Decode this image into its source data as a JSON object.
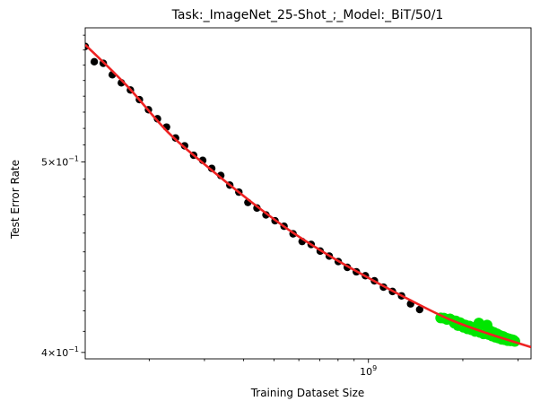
{
  "chart_data": {
    "type": "scatter",
    "title": "Task:_ImageNet_25-Shot_;_Model:_BiT/50/1",
    "xlabel": "Training Dataset Size",
    "ylabel": "Test Error Rate",
    "x_scale": "log",
    "y_scale": "log",
    "xlim": [
      125000000,
      3300000000
    ],
    "ylim": [
      0.397,
      0.585
    ],
    "x_tick_labels": [
      {
        "value": 1000000000,
        "base": "10",
        "exp": "9"
      }
    ],
    "y_tick_labels": [
      {
        "value": 0.5,
        "mant": "5",
        "base": "10",
        "exp": "−1"
      },
      {
        "value": 0.4,
        "mant": "4",
        "base": "10",
        "exp": "−1"
      }
    ],
    "grid": false,
    "legend": "none",
    "colors": {
      "train": "#000000",
      "holdout": "#00e600",
      "fit": "#ee2222"
    },
    "series": [
      {
        "role": "train",
        "points": [
          [
            125000000,
            0.5724
          ],
          [
            133600000,
            0.5622
          ],
          [
            142700000,
            0.5612
          ],
          [
            152500000,
            0.5537
          ],
          [
            163000000,
            0.5485
          ],
          [
            174200000,
            0.5439
          ],
          [
            186100000,
            0.5378
          ],
          [
            198900000,
            0.5315
          ],
          [
            212500000,
            0.5259
          ],
          [
            227100000,
            0.5208
          ],
          [
            242700000,
            0.5142
          ],
          [
            259300000,
            0.5095
          ],
          [
            277100000,
            0.5039
          ],
          [
            296200000,
            0.5009
          ],
          [
            316500000,
            0.4962
          ],
          [
            338200000,
            0.4921
          ],
          [
            361400000,
            0.4866
          ],
          [
            386200000,
            0.4826
          ],
          [
            412700000,
            0.4768
          ],
          [
            441100000,
            0.4737
          ],
          [
            471300000,
            0.4699
          ],
          [
            503700000,
            0.4667
          ],
          [
            538200000,
            0.4637
          ],
          [
            575100000,
            0.4596
          ],
          [
            614600000,
            0.4555
          ],
          [
            656800000,
            0.4539
          ],
          [
            701800000,
            0.4504
          ],
          [
            750000000,
            0.4478
          ],
          [
            801400000,
            0.4449
          ],
          [
            856400000,
            0.4419
          ],
          [
            915200000,
            0.4396
          ],
          [
            978000000,
            0.4376
          ],
          [
            1045000000,
            0.435
          ],
          [
            1116700000,
            0.4318
          ],
          [
            1193400000,
            0.4296
          ],
          [
            1275300000,
            0.4274
          ],
          [
            1362800000,
            0.4234
          ],
          [
            1456400000,
            0.4206
          ]
        ]
      },
      {
        "role": "holdout",
        "points": [
          [
            1700000000,
            0.4165
          ],
          [
            1740000000,
            0.4164
          ],
          [
            1780000000,
            0.4158
          ],
          [
            1820000000,
            0.416
          ],
          [
            1860000000,
            0.4152
          ],
          [
            1880000000,
            0.414
          ],
          [
            1900000000,
            0.415
          ],
          [
            1930000000,
            0.4128
          ],
          [
            1960000000,
            0.4142
          ],
          [
            1990000000,
            0.4135
          ],
          [
            2010000000,
            0.412
          ],
          [
            2040000000,
            0.413
          ],
          [
            2070000000,
            0.4112
          ],
          [
            2100000000,
            0.4125
          ],
          [
            2130000000,
            0.4108
          ],
          [
            2160000000,
            0.4118
          ],
          [
            2190000000,
            0.41
          ],
          [
            2220000000,
            0.4115
          ],
          [
            2250000000,
            0.414
          ],
          [
            2270000000,
            0.4095
          ],
          [
            2300000000,
            0.4122
          ],
          [
            2330000000,
            0.4088
          ],
          [
            2360000000,
            0.411
          ],
          [
            2390000000,
            0.413
          ],
          [
            2420000000,
            0.4085
          ],
          [
            2450000000,
            0.4102
          ],
          [
            2480000000,
            0.4078
          ],
          [
            2510000000,
            0.4095
          ],
          [
            2540000000,
            0.4072
          ],
          [
            2570000000,
            0.4088
          ],
          [
            2600000000,
            0.4068
          ],
          [
            2630000000,
            0.408
          ],
          [
            2660000000,
            0.4062
          ],
          [
            2690000000,
            0.4075
          ],
          [
            2720000000,
            0.406
          ],
          [
            2750000000,
            0.4068
          ],
          [
            2780000000,
            0.4056
          ],
          [
            2810000000,
            0.4064
          ],
          [
            2840000000,
            0.4055
          ],
          [
            2870000000,
            0.406
          ],
          [
            2900000000,
            0.4058
          ],
          [
            2930000000,
            0.4052
          ]
        ]
      },
      {
        "role": "fit",
        "points": [
          [
            125000000,
            0.5735
          ],
          [
            170000000,
            0.5465
          ],
          [
            230000000,
            0.5175
          ],
          [
            310000000,
            0.4965
          ],
          [
            420000000,
            0.4775
          ],
          [
            560000000,
            0.4615
          ],
          [
            750000000,
            0.448
          ],
          [
            1000000000,
            0.4365
          ],
          [
            1350000000,
            0.4255
          ],
          [
            1800000000,
            0.416
          ],
          [
            2400000000,
            0.409
          ],
          [
            3300000000,
            0.4025
          ]
        ]
      }
    ]
  }
}
